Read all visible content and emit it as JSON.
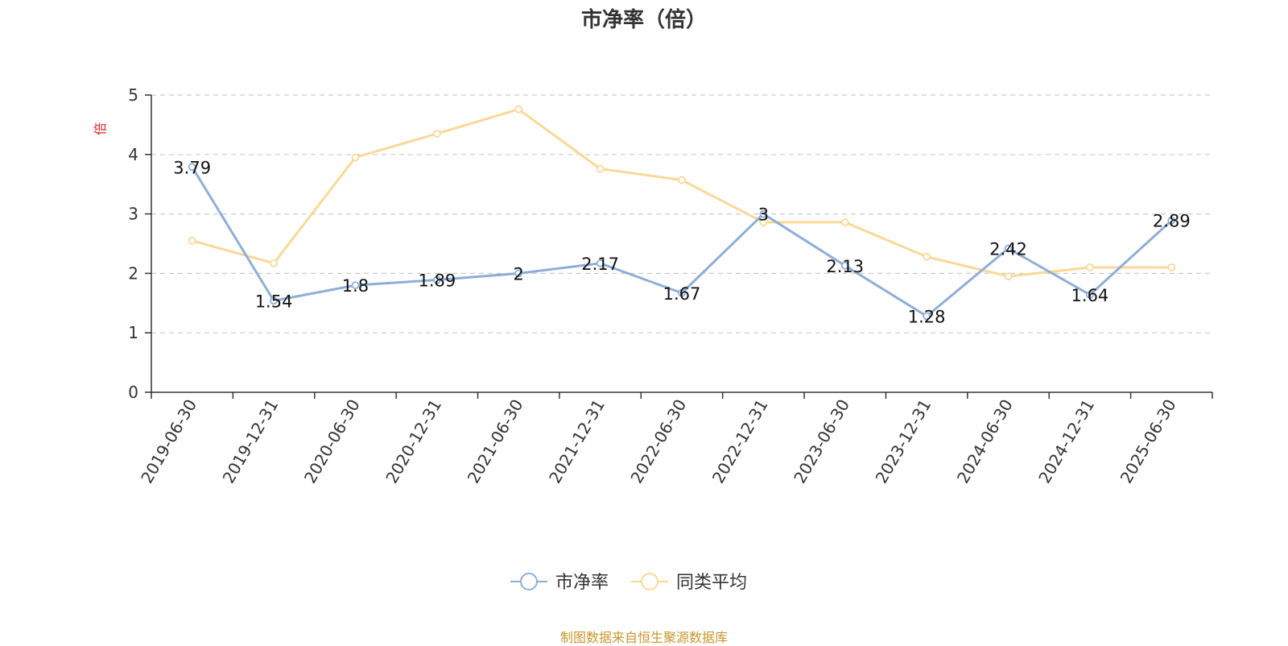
{
  "chart_data": {
    "type": "line",
    "title": "市净率（倍）",
    "ylabel": "倍",
    "xlabel": "",
    "ylim": [
      0,
      5
    ],
    "yticks": [
      0,
      1,
      2,
      3,
      4,
      5
    ],
    "grid": true,
    "legend_position": "bottom",
    "categories": [
      "2019-06-30",
      "2019-12-31",
      "2020-06-30",
      "2020-12-31",
      "2021-06-30",
      "2021-12-31",
      "2022-06-30",
      "2022-12-31",
      "2023-06-30",
      "2023-12-31",
      "2024-06-30",
      "2024-12-31",
      "2025-06-30"
    ],
    "series": [
      {
        "name": "市净率",
        "color": "#8eaed8",
        "values": [
          3.79,
          1.54,
          1.8,
          1.89,
          2,
          2.17,
          1.67,
          3,
          2.13,
          1.28,
          2.42,
          1.64,
          2.89
        ],
        "labels": [
          "3.79",
          "1.54",
          "1.8",
          "1.89",
          "2",
          "2.17",
          "1.67",
          "3",
          "2.13",
          "1.28",
          "2.42",
          "1.64",
          "2.89"
        ]
      },
      {
        "name": "同类平均",
        "color": "#fbd898",
        "values": [
          2.55,
          2.17,
          3.95,
          4.35,
          4.76,
          3.76,
          3.57,
          2.86,
          2.86,
          2.28,
          1.95,
          2.1,
          2.1
        ]
      }
    ]
  },
  "source_note": "制图数据来自恒生聚源数据库",
  "colors": {
    "axis": "#333333",
    "grid": "#cccccc",
    "ylabel": "#e0202a",
    "source": "#c8962c"
  }
}
